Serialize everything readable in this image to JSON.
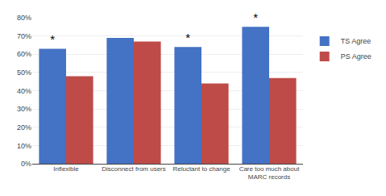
{
  "chart_data": {
    "type": "bar",
    "categories": [
      "Inflexible",
      "Disconnect from users",
      "Reluctant to change",
      "Care too much about\nMARC records"
    ],
    "series": [
      {
        "name": "TS Agree",
        "color": "#4472C4",
        "values": [
          63,
          69,
          64,
          75
        ]
      },
      {
        "name": "PS Agree",
        "color": "#BE4B48",
        "values": [
          48,
          67,
          44,
          47
        ]
      }
    ],
    "annotations": [
      {
        "text": "*",
        "category": "Inflexible",
        "series": "TS Agree"
      },
      {
        "text": "*",
        "category": "Reluctant to change",
        "series": "TS Agree"
      },
      {
        "text": "*",
        "category": "Care too much about\nMARC records",
        "series": "TS Agree"
      }
    ],
    "ylim": [
      0,
      80
    ],
    "yticks": [
      {
        "value": 0,
        "label": "0%"
      },
      {
        "value": 10,
        "label": "10%"
      },
      {
        "value": 20,
        "label": "20%"
      },
      {
        "value": 30,
        "label": "30%"
      },
      {
        "value": 40,
        "label": "40%"
      },
      {
        "value": 50,
        "label": "50%"
      },
      {
        "value": 60,
        "label": "60%"
      },
      {
        "value": 70,
        "label": "70%"
      },
      {
        "value": 80,
        "label": "80%"
      }
    ],
    "grid": true,
    "legend": "right"
  }
}
